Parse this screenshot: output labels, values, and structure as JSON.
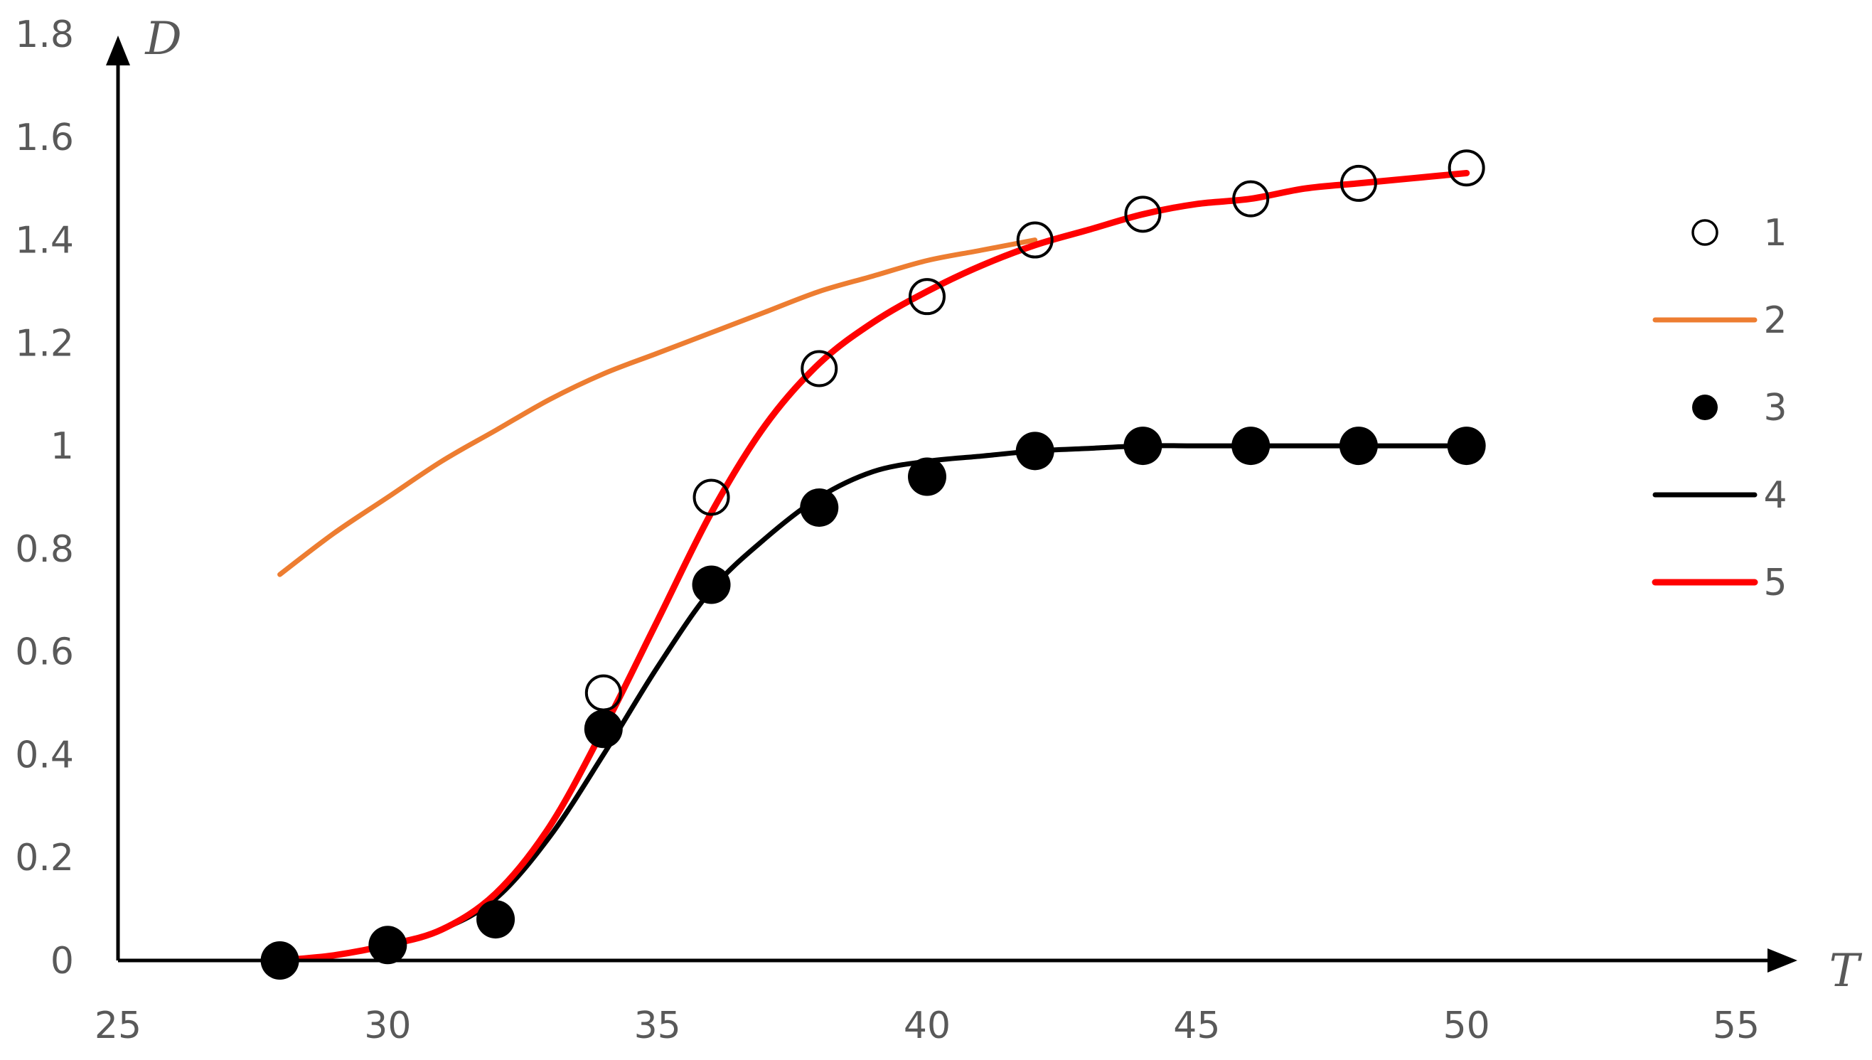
{
  "chart_data": {
    "type": "scatter",
    "xlabel": "T",
    "ylabel": "D",
    "xlim": [
      25,
      55
    ],
    "ylim": [
      0,
      1.8
    ],
    "x_ticks": [
      "25",
      "30",
      "35",
      "40",
      "45",
      "50",
      "55"
    ],
    "y_ticks": [
      "0",
      "0.2",
      "0.4",
      "0.6",
      "0.8",
      "1",
      "1.2",
      "1.4",
      "1.6",
      "1.8"
    ],
    "grid": false,
    "legend_position": "right",
    "series": [
      {
        "name": "1",
        "kind": "markers-open",
        "color": "#000000",
        "x": [
          28,
          30,
          32,
          34,
          36,
          38,
          40,
          42,
          44,
          46,
          48,
          50
        ],
        "y": [
          0.0,
          0.03,
          0.08,
          0.52,
          0.9,
          1.15,
          1.29,
          1.4,
          1.45,
          1.48,
          1.51,
          1.54
        ]
      },
      {
        "name": "2",
        "kind": "line",
        "color": "#ED7D31",
        "x": [
          28,
          29,
          30,
          31,
          32,
          33,
          34,
          35,
          36,
          37,
          38,
          39,
          40,
          41,
          42
        ],
        "y": [
          0.75,
          0.83,
          0.9,
          0.97,
          1.03,
          1.09,
          1.14,
          1.18,
          1.22,
          1.26,
          1.3,
          1.33,
          1.36,
          1.38,
          1.4
        ]
      },
      {
        "name": "3",
        "kind": "markers-filled",
        "color": "#000000",
        "x": [
          28,
          30,
          32,
          34,
          36,
          38,
          40,
          42,
          44,
          46,
          48,
          50
        ],
        "y": [
          0.0,
          0.03,
          0.08,
          0.45,
          0.73,
          0.88,
          0.94,
          0.99,
          1.0,
          1.0,
          1.0,
          1.0
        ]
      },
      {
        "name": "4",
        "kind": "line",
        "color": "#000000",
        "x": [
          28,
          29,
          30,
          31,
          32,
          33,
          34,
          35,
          36,
          37,
          38,
          39,
          40,
          41,
          42,
          43,
          44,
          45,
          46,
          47,
          48,
          49,
          50
        ],
        "y": [
          0.0,
          0.01,
          0.03,
          0.06,
          0.12,
          0.24,
          0.4,
          0.57,
          0.72,
          0.82,
          0.9,
          0.95,
          0.97,
          0.98,
          0.99,
          0.995,
          1.0,
          1.0,
          1.0,
          1.0,
          1.0,
          1.0,
          1.0
        ]
      },
      {
        "name": "5",
        "kind": "line",
        "color": "#FF0000",
        "x": [
          28,
          29,
          30,
          31,
          32,
          33,
          34,
          35,
          36,
          37,
          38,
          39,
          40,
          41,
          42,
          43,
          44,
          45,
          46,
          47,
          48,
          49,
          50
        ],
        "y": [
          0.0,
          0.01,
          0.03,
          0.06,
          0.13,
          0.26,
          0.45,
          0.66,
          0.87,
          1.04,
          1.16,
          1.24,
          1.3,
          1.35,
          1.39,
          1.42,
          1.45,
          1.47,
          1.48,
          1.5,
          1.51,
          1.52,
          1.53
        ]
      }
    ]
  }
}
